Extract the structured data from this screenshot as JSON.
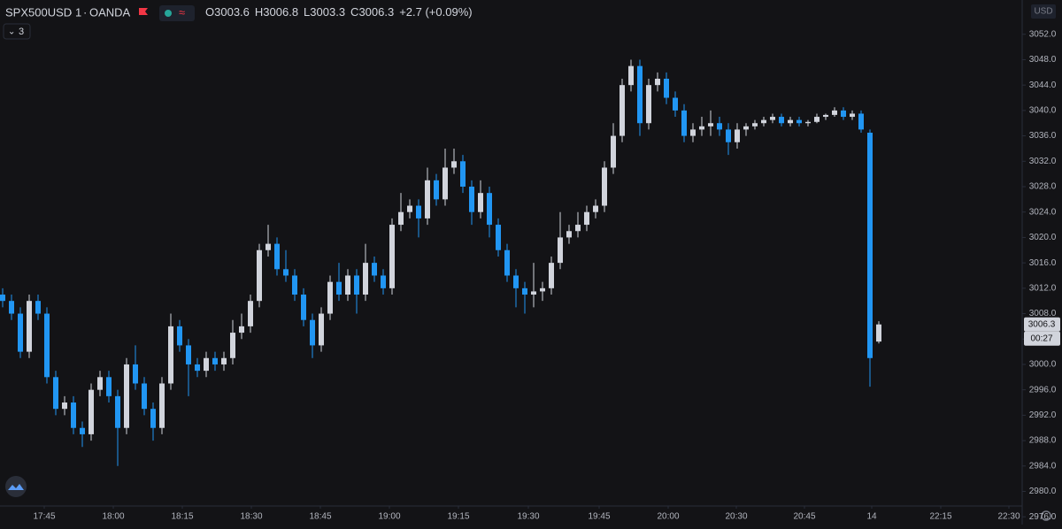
{
  "header": {
    "symbol": "SPX500USD",
    "interval": "1",
    "exchange": "OANDA",
    "o": "O",
    "h": "H",
    "l": "L",
    "c": "C",
    "change": "+2.7 (+0.09%)",
    "indicators": "3",
    "currency": "USD",
    "countdown": "00:27"
  },
  "chart_data": {
    "type": "candlestick",
    "up_color": "#d1d4dc",
    "down_color": "#2196f3",
    "ylim": [
      2977.7,
      3057.4
    ],
    "xlim": [
      -0.3,
      115.2
    ],
    "yticks": [
      {
        "value": 2976,
        "label": "2976.0"
      },
      {
        "value": 2980,
        "label": "2980.0"
      },
      {
        "value": 2984,
        "label": "2984.0"
      },
      {
        "value": 2988,
        "label": "2988.0"
      },
      {
        "value": 2992,
        "label": "2992.0"
      },
      {
        "value": 2996,
        "label": "2996.0"
      },
      {
        "value": 3000,
        "label": "3000.0"
      },
      {
        "value": 3004,
        "label": "3004.0"
      },
      {
        "value": 3008,
        "label": "3008.0"
      },
      {
        "value": 3012,
        "label": "3012.0"
      },
      {
        "value": 3016,
        "label": "3016.0"
      },
      {
        "value": 3020,
        "label": "3020.0"
      },
      {
        "value": 3024,
        "label": "3024.0"
      },
      {
        "value": 3028,
        "label": "3028.0"
      },
      {
        "value": 3032,
        "label": "3032.0"
      },
      {
        "value": 3036,
        "label": "3036.0"
      },
      {
        "value": 3040,
        "label": "3040.0"
      },
      {
        "value": 3044,
        "label": "3044.0"
      },
      {
        "value": 3048,
        "label": "3048.0"
      },
      {
        "value": 3052,
        "label": "3052.0"
      }
    ],
    "xticks": [
      {
        "value": 4.7,
        "label": "17:45"
      },
      {
        "value": 12.5,
        "label": "18:00"
      },
      {
        "value": 20.3,
        "label": "18:15"
      },
      {
        "value": 28.1,
        "label": "18:30"
      },
      {
        "value": 35.9,
        "label": "18:45"
      },
      {
        "value": 43.7,
        "label": "19:00"
      },
      {
        "value": 51.5,
        "label": "19:15"
      },
      {
        "value": 59.4,
        "label": "19:30"
      },
      {
        "value": 67.4,
        "label": "19:45"
      },
      {
        "value": 75.2,
        "label": "20:00"
      },
      {
        "value": 82.9,
        "label": "20:30"
      },
      {
        "value": 90.6,
        "label": "20:45"
      },
      {
        "value": 98.2,
        "label": "14"
      },
      {
        "value": 106,
        "label": "22:15"
      },
      {
        "value": 113.7,
        "label": "22:30"
      }
    ],
    "candles": [
      [
        3011,
        3012,
        3009,
        3010
      ],
      [
        3010,
        3011,
        3007,
        3008
      ],
      [
        3008,
        3009,
        3001,
        3002
      ],
      [
        3002,
        3011,
        3001,
        3010
      ],
      [
        3010,
        3011,
        3007,
        3008
      ],
      [
        3008,
        3009,
        2997,
        2998
      ],
      [
        2998,
        2999,
        2992,
        2993
      ],
      [
        2993,
        2995,
        2992,
        2994
      ],
      [
        2994,
        2995,
        2989,
        2990
      ],
      [
        2990,
        2991,
        2987,
        2989
      ],
      [
        2989,
        2997,
        2988,
        2996
      ],
      [
        2996,
        2999,
        2995,
        2998
      ],
      [
        2998,
        2999,
        2994,
        2995
      ],
      [
        2995,
        2996,
        2984,
        2990
      ],
      [
        2990,
        3001,
        2989,
        3000
      ],
      [
        3000,
        3003,
        2996,
        2997
      ],
      [
        2997,
        2998,
        2992,
        2993
      ],
      [
        2993,
        2994,
        2988,
        2990
      ],
      [
        2990,
        2998,
        2989,
        2997
      ],
      [
        2997,
        3008,
        2996,
        3006
      ],
      [
        3006,
        3007,
        3002,
        3003
      ],
      [
        3003,
        3004,
        2995,
        3000
      ],
      [
        3000,
        3001,
        2998,
        2999
      ],
      [
        2999,
        3002,
        2998,
        3001
      ],
      [
        3001,
        3002,
        2999,
        3000
      ],
      [
        3000,
        3002,
        2999,
        3001
      ],
      [
        3001,
        3007,
        3000,
        3005
      ],
      [
        3005,
        3008,
        3004,
        3006
      ],
      [
        3006,
        3011,
        3005,
        3010
      ],
      [
        3010,
        3019,
        3009,
        3018
      ],
      [
        3018,
        3022,
        3017,
        3019
      ],
      [
        3019,
        3020,
        3014,
        3015
      ],
      [
        3015,
        3018,
        3013,
        3014
      ],
      [
        3014,
        3015,
        3010,
        3011
      ],
      [
        3011,
        3012,
        3006,
        3007
      ],
      [
        3007,
        3008,
        3001,
        3003
      ],
      [
        3003,
        3009,
        3002,
        3008
      ],
      [
        3008,
        3014,
        3007,
        3013
      ],
      [
        3013,
        3016,
        3010,
        3011
      ],
      [
        3011,
        3015,
        3010,
        3014
      ],
      [
        3014,
        3015,
        3008,
        3011
      ],
      [
        3011,
        3019,
        3010,
        3016
      ],
      [
        3016,
        3017,
        3013,
        3014
      ],
      [
        3014,
        3015,
        3011,
        3012
      ],
      [
        3012,
        3023,
        3011,
        3022
      ],
      [
        3022,
        3027,
        3021,
        3024
      ],
      [
        3024,
        3026,
        3023,
        3025
      ],
      [
        3025,
        3026,
        3020,
        3023
      ],
      [
        3023,
        3031,
        3022,
        3029
      ],
      [
        3029,
        3030,
        3025,
        3026
      ],
      [
        3026,
        3034,
        3025,
        3031
      ],
      [
        3031,
        3034,
        3030,
        3032
      ],
      [
        3032,
        3033,
        3027,
        3028
      ],
      [
        3028,
        3029,
        3022,
        3024
      ],
      [
        3024,
        3029,
        3023,
        3027
      ],
      [
        3027,
        3028,
        3020,
        3022
      ],
      [
        3022,
        3023,
        3017,
        3018
      ],
      [
        3018,
        3019,
        3013,
        3014
      ],
      [
        3014,
        3015,
        3009,
        3012
      ],
      [
        3012,
        3013,
        3008,
        3011
      ],
      [
        3011,
        3016,
        3009,
        3011.5
      ],
      [
        3011.5,
        3013,
        3010,
        3012
      ],
      [
        3012,
        3017,
        3011,
        3016
      ],
      [
        3016,
        3024,
        3015,
        3020
      ],
      [
        3020,
        3022,
        3019,
        3021
      ],
      [
        3021,
        3024,
        3020,
        3022
      ],
      [
        3022,
        3025,
        3021,
        3024
      ],
      [
        3024,
        3026,
        3023,
        3025
      ],
      [
        3025,
        3032,
        3024,
        3031
      ],
      [
        3031,
        3038,
        3030,
        3036
      ],
      [
        3036,
        3045,
        3035,
        3044
      ],
      [
        3044,
        3048,
        3043,
        3047
      ],
      [
        3047,
        3048,
        3036,
        3038
      ],
      [
        3038,
        3045,
        3037,
        3044
      ],
      [
        3044,
        3046,
        3043,
        3045
      ],
      [
        3045,
        3046,
        3041,
        3042
      ],
      [
        3042,
        3043,
        3039,
        3040
      ],
      [
        3040,
        3041,
        3035,
        3036
      ],
      [
        3036,
        3038,
        3035,
        3037
      ],
      [
        3037,
        3039,
        3036,
        3037.5
      ],
      [
        3037.5,
        3040,
        3036,
        3038
      ],
      [
        3038,
        3039,
        3036,
        3037
      ],
      [
        3037,
        3038,
        3033,
        3035
      ],
      [
        3035,
        3038,
        3034,
        3037
      ],
      [
        3037,
        3038,
        3036,
        3037.5
      ],
      [
        3037.5,
        3038.5,
        3037,
        3038
      ],
      [
        3038,
        3039,
        3037.5,
        3038.5
      ],
      [
        3038.5,
        3039.5,
        3038,
        3039
      ],
      [
        3039,
        3039.5,
        3037.5,
        3038
      ],
      [
        3038,
        3039,
        3037.5,
        3038.5
      ],
      [
        3038.5,
        3039,
        3037.5,
        3038
      ],
      [
        3038,
        3038.5,
        3037.5,
        3038.2
      ],
      [
        3038.2,
        3039.5,
        3038,
        3039
      ],
      [
        3039,
        3039.5,
        3038.5,
        3039.3
      ],
      [
        3039.3,
        3040.5,
        3039,
        3040
      ],
      [
        3040,
        3040.5,
        3038.5,
        3039
      ],
      [
        3039,
        3040,
        3038.5,
        3039.5
      ],
      [
        3039.5,
        3040,
        3036.5,
        3037
      ],
      [
        3036.5,
        3037,
        2996.5,
        3001
      ],
      [
        3003.6,
        3006.8,
        3003.3,
        3006.3
      ]
    ]
  }
}
